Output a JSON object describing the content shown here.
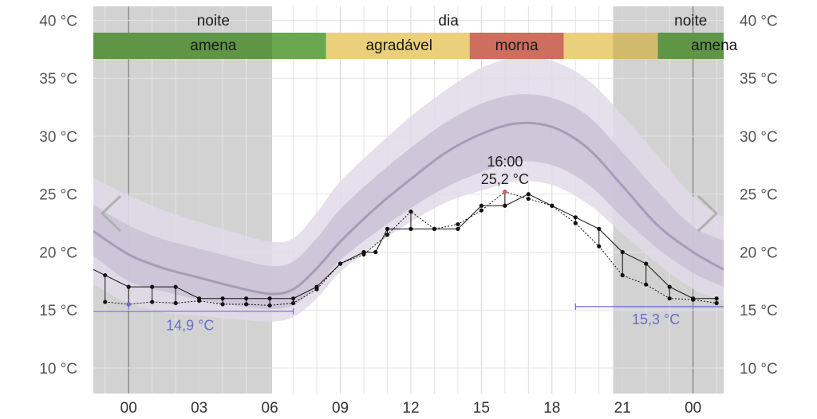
{
  "chart_data": {
    "type": "line",
    "x_ticks": [
      "00",
      "03",
      "06",
      "09",
      "12",
      "15",
      "18",
      "21",
      "00"
    ],
    "y_ticks": [
      "10 °C",
      "15 °C",
      "20 °C",
      "25 °C",
      "30 °C",
      "35 °C",
      "40 °C"
    ],
    "x_range_hours": [
      -1.5,
      25.3
    ],
    "y_range": [
      7.8,
      41.2
    ],
    "grid": true,
    "period_labels": [
      {
        "label": "noite",
        "hour": 3.6
      },
      {
        "label": "dia",
        "hour": 13.6
      },
      {
        "label": "noite",
        "hour": 23.9
      }
    ],
    "night_spans": [
      {
        "from_hour": -1.5,
        "to_hour": 6.1
      },
      {
        "from_hour": 20.6,
        "to_hour": 25.3
      }
    ],
    "comfort_bands": [
      {
        "label": "amena",
        "from_hour": -1.5,
        "to_hour": 8.4,
        "color": "#6aa84f",
        "label_hour": 3.6
      },
      {
        "label": "agradável",
        "from_hour": 8.4,
        "to_hour": 14.5,
        "color": "#ead07a",
        "label_hour": 11.5
      },
      {
        "label": "morna",
        "from_hour": 14.5,
        "to_hour": 18.5,
        "color": "#cd6e5e",
        "label_hour": 16.5
      },
      {
        "label": "",
        "from_hour": 18.5,
        "to_hour": 22.5,
        "color": "#ead07a",
        "label_hour": 20.5
      },
      {
        "label": "amena",
        "from_hour": 22.5,
        "to_hour": 25.3,
        "color": "#6aa84f",
        "label_hour": 24.9
      }
    ],
    "forecast": {
      "hours": [
        -1.5,
        0,
        1.5,
        3,
        4.5,
        6,
        7,
        8,
        9,
        10.5,
        12,
        13.5,
        15,
        16.5,
        18,
        19.5,
        21,
        22.5,
        24,
        25.3
      ],
      "median": [
        21.8,
        19.8,
        18.6,
        17.8,
        17.0,
        16.4,
        16.8,
        18.6,
        20.9,
        23.8,
        26.3,
        28.6,
        30.2,
        31.1,
        30.8,
        29.0,
        25.7,
        22.3,
        20.0,
        18.5
      ],
      "inner_low": [
        19.7,
        17.5,
        16.6,
        15.9,
        15.4,
        15.1,
        15.4,
        17.0,
        19.3,
        21.7,
        23.8,
        25.6,
        26.9,
        27.8,
        27.5,
        25.9,
        23.0,
        20.3,
        18.2,
        17.0
      ],
      "inner_high": [
        24.1,
        22.3,
        21.1,
        20.3,
        19.5,
        18.8,
        19.2,
        21.2,
        23.7,
        26.5,
        29.0,
        31.2,
        32.8,
        33.6,
        33.3,
        31.8,
        28.6,
        25.2,
        22.2,
        21.0
      ],
      "outer_low": [
        17.2,
        15.6,
        14.8,
        14.5,
        14.2,
        14.0,
        14.4,
        16.0,
        18.3,
        20.6,
        22.6,
        24.3,
        25.3,
        26.1,
        25.8,
        24.2,
        21.6,
        19.0,
        16.8,
        15.8
      ],
      "outer_high": [
        26.4,
        24.9,
        23.6,
        22.6,
        21.7,
        20.9,
        21.2,
        23.4,
        26.1,
        29.0,
        31.7,
        34.0,
        35.9,
        36.8,
        36.5,
        34.9,
        31.8,
        28.3,
        24.8,
        23.0
      ]
    },
    "observed_max": {
      "hours": [
        -1.5,
        -1,
        0,
        1,
        2,
        3,
        4,
        5,
        6,
        7,
        8,
        9,
        10,
        10.5,
        11,
        12,
        13,
        14,
        15,
        16,
        17,
        18,
        19,
        20,
        21,
        22,
        23,
        24,
        25
      ],
      "values": [
        18.5,
        18.0,
        17.0,
        17.0,
        17.0,
        16.0,
        16.0,
        16.0,
        16.0,
        16.0,
        17.0,
        19.0,
        20.0,
        20.0,
        22.0,
        22.0,
        22.0,
        22.0,
        24.0,
        24.0,
        25.0,
        24.0,
        23.0,
        22.0,
        20.0,
        19.0,
        17.0,
        16.0,
        16.0
      ]
    },
    "observed_min": {
      "hours": [
        -1,
        0,
        1,
        2,
        3,
        4,
        5,
        6,
        7,
        8,
        9,
        10,
        11,
        12,
        13,
        14,
        15,
        16,
        17,
        18,
        19,
        20,
        21,
        22,
        23,
        24,
        25
      ],
      "values": [
        15.7,
        15.5,
        15.7,
        15.6,
        15.8,
        15.5,
        15.5,
        15.4,
        15.6,
        16.8,
        19.0,
        19.8,
        21.5,
        23.5,
        22.0,
        22.4,
        23.6,
        25.2,
        24.6,
        24.0,
        22.5,
        20.5,
        18.0,
        17.2,
        16.0,
        15.9,
        15.6
      ]
    },
    "min_marker": {
      "hour": 0,
      "value": 15.5
    },
    "max_marker": {
      "hour": 16,
      "value": 25.2
    },
    "max_label_time": "16:00",
    "max_label_value": "25,2 °C",
    "min_label_left": "14,9 °C",
    "min_label_right": "15,3 °C",
    "min_line_left": {
      "from_hour": -1.5,
      "to_hour": 7,
      "value": 14.9
    },
    "min_line_right": {
      "from_hour": 19,
      "to_hour": 25.3,
      "value": 15.3
    },
    "colors": {
      "night_shade": "#d2d2d2",
      "outer_band": "#e1dbe7",
      "inner_band": "#cbc1d6",
      "median_line": "#a79cb7",
      "grid": "#e4e4e4",
      "axis_text": "#555555",
      "observed": "#111111",
      "min_accent": "#6b6bd0",
      "max_marker": "#d06060"
    }
  }
}
